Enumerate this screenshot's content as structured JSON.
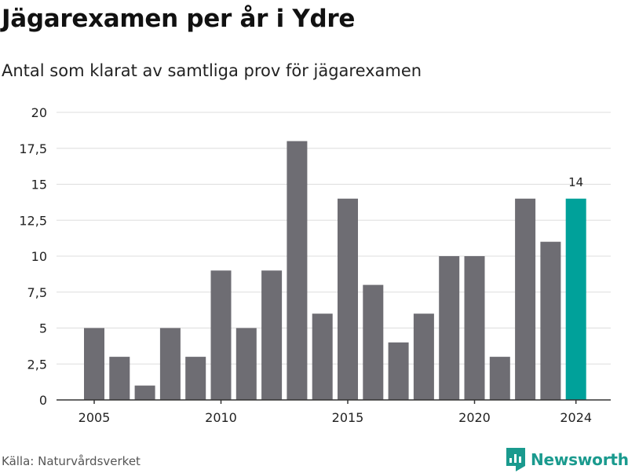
{
  "title": "Jägarexamen per år i Ydre",
  "subtitle": "Antal som klarat av samtliga prov för jägarexamen",
  "source": "Källa: Naturvårdsverket",
  "brand": {
    "name": "Newsworthy",
    "icon": "bar-chart-logo-icon"
  },
  "colors": {
    "bar": "#6e6d73",
    "highlight": "#00a19a",
    "grid": "#dddddd",
    "axis": "#333333",
    "brand": "#1a9a8e"
  },
  "chart_data": {
    "type": "bar",
    "x": [
      2005,
      2006,
      2007,
      2008,
      2009,
      2010,
      2011,
      2012,
      2013,
      2014,
      2015,
      2016,
      2017,
      2018,
      2019,
      2020,
      2021,
      2022,
      2023,
      2024
    ],
    "values": [
      5,
      3,
      1,
      5,
      3,
      9,
      5,
      9,
      18,
      6,
      14,
      8,
      4,
      6,
      10,
      10,
      3,
      14,
      11,
      14
    ],
    "highlight": {
      "x": 2024,
      "value": 14,
      "label": "14"
    },
    "ylim": [
      0,
      20
    ],
    "yticks": [
      0,
      2.5,
      5,
      7.5,
      10,
      12.5,
      15,
      17.5,
      20
    ],
    "ytick_labels": [
      "0",
      "2,5",
      "5",
      "7,5",
      "10",
      "12,5",
      "15",
      "17,5",
      "20"
    ],
    "xticks": [
      2005,
      2010,
      2015,
      2020,
      2024
    ],
    "xtick_labels": [
      "2005",
      "2010",
      "2015",
      "2020",
      "2024"
    ],
    "grid": true,
    "legend": "none"
  }
}
